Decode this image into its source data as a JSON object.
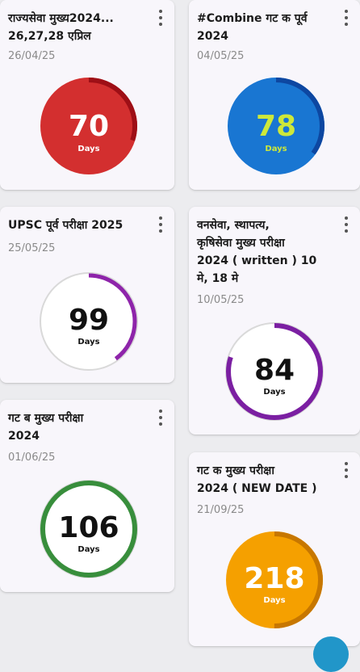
{
  "cards": [
    {
      "title": "राज्यसेवा मुख्य2024...\n26,27,28 एप्रिल",
      "date": "26/04/25",
      "days": "70",
      "days_label": "Days",
      "progress": 0.3,
      "fill": "#d32f2f",
      "arc": "#9e0f16",
      "track": "#d32f2f",
      "num_color": "#ffffff",
      "days_color": "#ffffff"
    },
    {
      "title": "#Combine गट क पूर्व\n2024",
      "date": "04/05/25",
      "days": "78",
      "days_label": "Days",
      "progress": 0.35,
      "fill": "#1976d2",
      "arc": "#0d47a1",
      "track": "#1976d2",
      "num_color": "#cde83a",
      "days_color": "#cde83a"
    },
    {
      "title": "UPSC पूर्व परीक्षा 2025",
      "date": "25/05/25",
      "days": "99",
      "days_label": "Days",
      "progress": 0.4,
      "fill": "#ffffff",
      "arc": "#8e24aa",
      "track": "#d9d9d9",
      "num_color": "#111111",
      "days_color": "#111111"
    },
    {
      "title": "वनसेवा, स्थापत्य,\nकृषिसेवा मुख्य परीक्षा\n2024 ( written ) 10\nमे, 18 मे",
      "date": "10/05/25",
      "days": "84",
      "days_label": "Days",
      "progress": 0.8,
      "fill": "#ffffff",
      "arc": "#7b1fa2",
      "track": "#d9d9d9",
      "num_color": "#111111",
      "days_color": "#111111"
    },
    {
      "title": "गट ब मुख्य परीक्षा\n2024",
      "date": "01/06/25",
      "days": "106",
      "days_label": "Days",
      "progress": 1.0,
      "fill": "#ffffff",
      "arc": "#388e3c",
      "track": "#d9d9d9",
      "num_color": "#111111",
      "days_color": "#111111"
    },
    {
      "title": "गट क मुख्य परीक्षा\n2024 ( NEW DATE )",
      "date": "21/09/25",
      "days": "218",
      "days_label": "Days",
      "progress": 0.5,
      "fill": "#f5a000",
      "arc": "#c77700",
      "track": "#f5a000",
      "num_color": "#ffffff",
      "days_color": "#ffffff"
    }
  ],
  "fab_color": "#2196c9"
}
